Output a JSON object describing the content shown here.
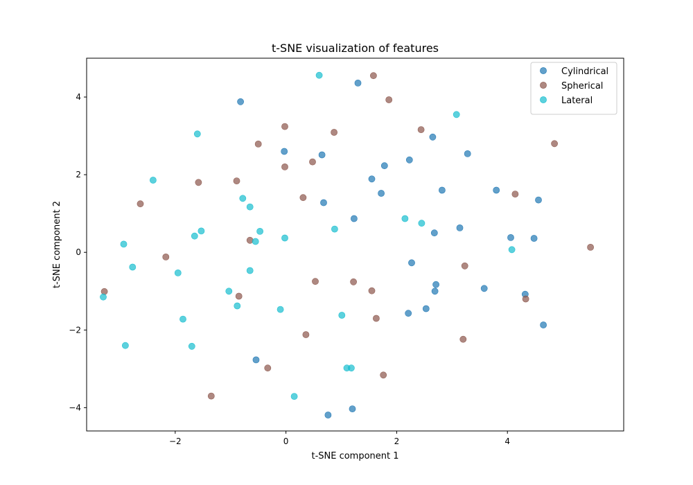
{
  "chart_data": {
    "type": "scatter",
    "title": "t-SNE visualization of features",
    "xlabel": "t-SNE component 1",
    "ylabel": "t-SNE component 2",
    "xlim": [
      -3.6,
      6.1
    ],
    "ylim": [
      -4.6,
      5.0
    ],
    "xticks": [
      -2,
      0,
      2,
      4
    ],
    "yticks": [
      -4,
      -2,
      0,
      2,
      4
    ],
    "xtick_labels": [
      "−2",
      "0",
      "2",
      "4"
    ],
    "ytick_labels": [
      "−4",
      "−2",
      "0",
      "2",
      "4"
    ],
    "grid": false,
    "legend_position": "top-right",
    "series": [
      {
        "name": "Cylindrical",
        "color": "#1f77b4",
        "points": [
          [
            -0.82,
            3.88
          ],
          [
            1.3,
            4.36
          ],
          [
            2.65,
            2.97
          ],
          [
            3.28,
            2.54
          ],
          [
            -0.03,
            2.6
          ],
          [
            0.65,
            2.51
          ],
          [
            1.78,
            2.23
          ],
          [
            2.23,
            2.38
          ],
          [
            1.55,
            1.89
          ],
          [
            1.72,
            1.52
          ],
          [
            2.82,
            1.6
          ],
          [
            3.8,
            1.6
          ],
          [
            4.56,
            1.35
          ],
          [
            0.68,
            1.28
          ],
          [
            1.23,
            0.87
          ],
          [
            2.68,
            0.5
          ],
          [
            3.14,
            0.63
          ],
          [
            4.06,
            0.38
          ],
          [
            4.48,
            0.36
          ],
          [
            2.27,
            -0.27
          ],
          [
            2.71,
            -0.83
          ],
          [
            2.69,
            -1.0
          ],
          [
            3.58,
            -0.93
          ],
          [
            4.32,
            -1.08
          ],
          [
            4.65,
            -1.87
          ],
          [
            2.21,
            -1.57
          ],
          [
            2.53,
            -1.45
          ],
          [
            -0.54,
            -2.77
          ],
          [
            1.2,
            -4.03
          ],
          [
            0.76,
            -4.19
          ]
        ]
      },
      {
        "name": "Spherical",
        "color": "#8c564b",
        "points": [
          [
            1.58,
            4.55
          ],
          [
            1.86,
            3.93
          ],
          [
            -0.02,
            3.24
          ],
          [
            0.87,
            3.09
          ],
          [
            2.44,
            3.16
          ],
          [
            -0.5,
            2.79
          ],
          [
            4.85,
            2.8
          ],
          [
            -0.02,
            2.2
          ],
          [
            0.48,
            2.33
          ],
          [
            -0.89,
            1.84
          ],
          [
            -1.58,
            1.8
          ],
          [
            4.14,
            1.5
          ],
          [
            -2.63,
            1.25
          ],
          [
            0.31,
            1.41
          ],
          [
            -0.65,
            0.31
          ],
          [
            5.5,
            0.13
          ],
          [
            -2.17,
            -0.12
          ],
          [
            3.23,
            -0.35
          ],
          [
            0.53,
            -0.75
          ],
          [
            1.22,
            -0.76
          ],
          [
            1.55,
            -0.99
          ],
          [
            4.33,
            -1.2
          ],
          [
            -3.28,
            -1.01
          ],
          [
            -0.85,
            -1.13
          ],
          [
            1.63,
            -1.7
          ],
          [
            0.36,
            -2.12
          ],
          [
            3.2,
            -2.24
          ],
          [
            -0.33,
            -2.98
          ],
          [
            1.76,
            -3.16
          ],
          [
            -1.35,
            -3.7
          ]
        ]
      },
      {
        "name": "Lateral",
        "color": "#17becf",
        "points": [
          [
            0.6,
            4.56
          ],
          [
            3.08,
            3.55
          ],
          [
            -1.6,
            3.05
          ],
          [
            -2.4,
            1.86
          ],
          [
            -0.78,
            1.39
          ],
          [
            -0.65,
            1.17
          ],
          [
            -1.53,
            0.55
          ],
          [
            -1.65,
            0.42
          ],
          [
            -0.47,
            0.54
          ],
          [
            -0.55,
            0.28
          ],
          [
            -0.02,
            0.37
          ],
          [
            0.88,
            0.6
          ],
          [
            2.15,
            0.87
          ],
          [
            2.45,
            0.75
          ],
          [
            4.08,
            0.07
          ],
          [
            -2.93,
            0.21
          ],
          [
            -2.77,
            -0.38
          ],
          [
            -1.95,
            -0.53
          ],
          [
            -0.65,
            -0.47
          ],
          [
            -1.03,
            -1.0
          ],
          [
            -0.88,
            -1.38
          ],
          [
            -0.1,
            -1.47
          ],
          [
            -3.3,
            -1.15
          ],
          [
            -1.86,
            -1.72
          ],
          [
            1.01,
            -1.62
          ],
          [
            -2.9,
            -2.4
          ],
          [
            -1.7,
            -2.42
          ],
          [
            1.1,
            -2.98
          ],
          [
            1.18,
            -2.98
          ],
          [
            0.15,
            -3.71
          ]
        ]
      }
    ]
  }
}
